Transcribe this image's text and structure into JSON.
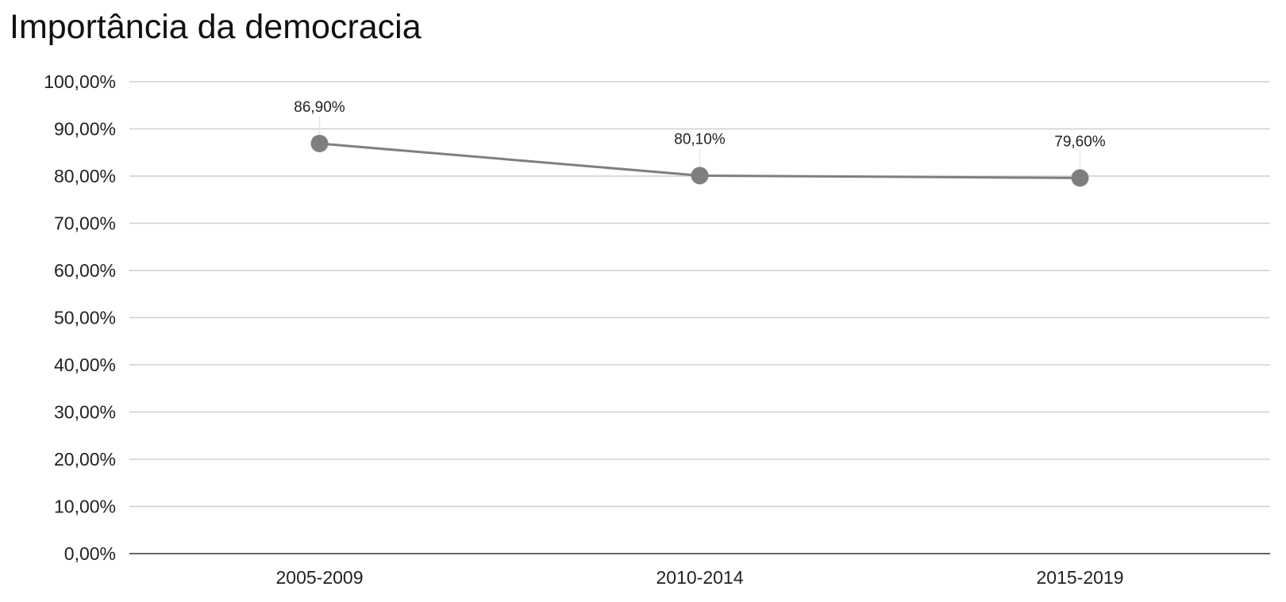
{
  "chart_data": {
    "type": "line",
    "title": "Importância da democracia",
    "categories": [
      "2005-2009",
      "2010-2014",
      "2015-2019"
    ],
    "series": [
      {
        "values": [
          86.9,
          80.1,
          79.6
        ],
        "color": "#7f7f7f"
      }
    ],
    "data_labels": [
      "86,90%",
      "80,10%",
      "79,60%"
    ],
    "ylim": [
      0,
      100
    ],
    "yticks": [
      0,
      10,
      20,
      30,
      40,
      50,
      60,
      70,
      80,
      90,
      100
    ],
    "ytick_labels": [
      "0,00%",
      "10,00%",
      "20,00%",
      "30,00%",
      "40,00%",
      "50,00%",
      "60,00%",
      "70,00%",
      "80,00%",
      "90,00%",
      "100,00%"
    ],
    "xlabel": "",
    "ylabel": "",
    "grid": true,
    "legend": "none"
  }
}
